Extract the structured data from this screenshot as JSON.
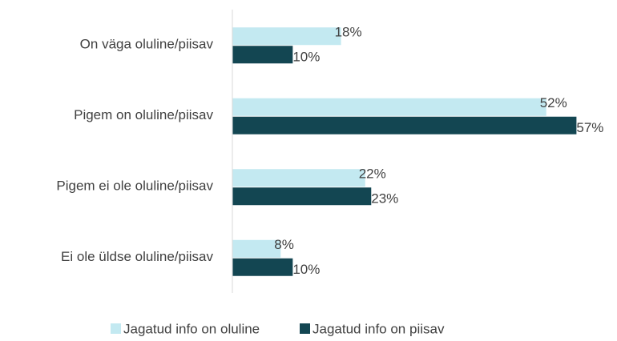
{
  "chart_data": {
    "type": "bar",
    "orientation": "horizontal",
    "categories": [
      "On väga oluline/piisav",
      "Pigem on oluline/piisav",
      "Pigem ei ole oluline/piisav",
      "Ei ole üldse oluline/piisav"
    ],
    "series": [
      {
        "name": "Jagatud info on oluline",
        "color": "#c3e9f1",
        "values": [
          18,
          52,
          22,
          8
        ],
        "value_labels": [
          "18%",
          "52%",
          "22%",
          "8%"
        ]
      },
      {
        "name": "Jagatud info on piisav",
        "color": "#134652",
        "values": [
          10,
          57,
          23,
          10
        ],
        "value_labels": [
          "10%",
          "57%",
          "23%",
          "10%"
        ]
      }
    ],
    "xlim": [
      0,
      60
    ],
    "legend": "bottom"
  }
}
